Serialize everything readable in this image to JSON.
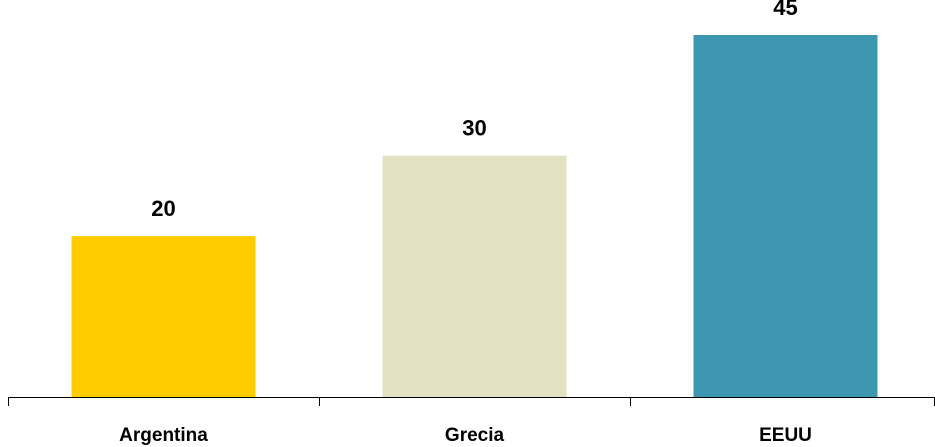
{
  "chart_data": {
    "type": "bar",
    "categories": [
      "Argentina",
      "Grecia",
      "EEUU"
    ],
    "values": [
      20,
      30,
      45
    ],
    "colors": [
      "#FFCC00",
      "#E2E1C2",
      "#3E97B0"
    ],
    "title": "",
    "xlabel": "",
    "ylabel": "",
    "ylim": [
      0,
      45
    ],
    "show_data_labels": true,
    "grid": false,
    "legend": "none"
  }
}
